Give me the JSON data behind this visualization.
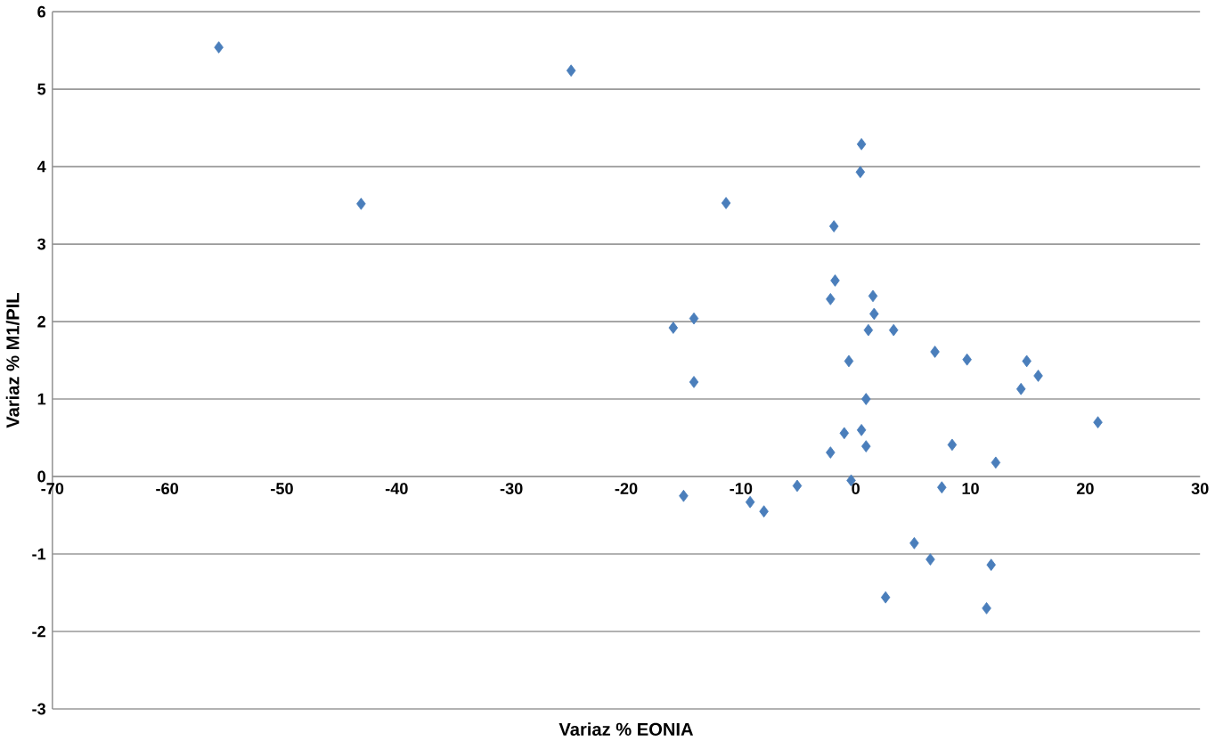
{
  "chart_data": {
    "type": "scatter",
    "xlabel": "Variaz % EONIA",
    "ylabel": "Variaz % M1/PIL",
    "xlim": [
      -70,
      30
    ],
    "xticks": [
      -70,
      -60,
      -50,
      -40,
      -30,
      -20,
      -10,
      0,
      10,
      20,
      30
    ],
    "ylim": [
      -3,
      6
    ],
    "yticks": [
      -3,
      -2,
      -1,
      0,
      1,
      2,
      3,
      4,
      5,
      6
    ],
    "grid": "y",
    "marker": "diamond",
    "series": [
      {
        "color": "#4a7ebb",
        "x": [
          0.5,
          0.4,
          -11.3,
          -1.9,
          -1.8,
          -2.2,
          1.5,
          1.6,
          -15.9,
          -14.1,
          1.1,
          3.3,
          -0.6,
          6.9,
          9.7,
          14.9,
          15.9,
          14.4,
          -14.1,
          0.9,
          21.1,
          -1.0,
          0.5,
          0.9,
          -2.2,
          8.4,
          12.2,
          -0.4,
          7.5,
          -5.1,
          -15.0,
          -9.2,
          -8.0,
          5.1,
          6.5,
          11.8,
          2.6,
          11.4,
          -55.5,
          -24.8,
          -43.1
        ],
        "values": [
          4.29,
          3.93,
          3.53,
          3.23,
          2.53,
          2.29,
          2.33,
          2.1,
          1.92,
          2.04,
          1.89,
          1.89,
          1.49,
          1.61,
          1.51,
          1.49,
          1.3,
          1.13,
          1.22,
          1.0,
          0.7,
          0.56,
          0.6,
          0.39,
          0.31,
          0.41,
          0.18,
          -0.05,
          -0.14,
          -0.12,
          -0.25,
          -0.33,
          -0.45,
          -0.86,
          -1.07,
          -1.14,
          -1.56,
          -1.7,
          5.54,
          5.24,
          3.52
        ]
      }
    ]
  }
}
